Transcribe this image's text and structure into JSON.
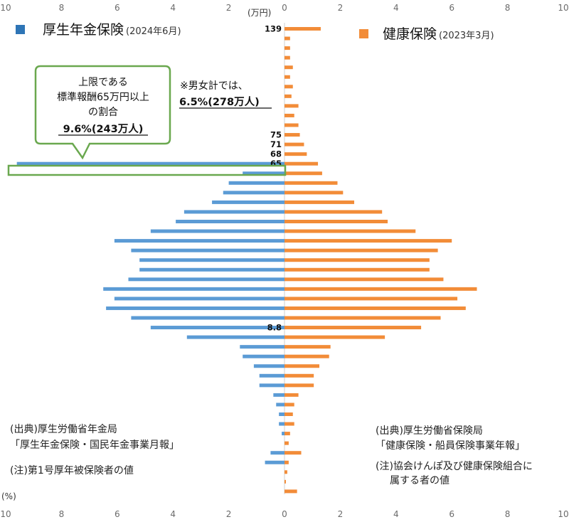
{
  "chart_data": {
    "type": "bar",
    "orientation": "horizontal-population-pyramid",
    "x_ticks": [
      "10",
      "8",
      "6",
      "4",
      "2",
      "0",
      "2",
      "4",
      "6",
      "8",
      "10"
    ],
    "x_unit_label": "(%)",
    "y_unit_label": "(万円)",
    "xlim": [
      -10,
      10
    ],
    "band_labels": [
      {
        "label": "139",
        "index": 0
      },
      {
        "label": "75",
        "index": 11
      },
      {
        "label": "71",
        "index": 12
      },
      {
        "label": "68",
        "index": 13
      },
      {
        "label": "65",
        "index": 14
      },
      {
        "label": "8.8",
        "index": 31
      }
    ],
    "series": [
      {
        "name": "厚生年金保険",
        "name_note": "(2024年6月)",
        "side": "left",
        "color": "#5b9bd5",
        "values": [
          0,
          0,
          0,
          0,
          0,
          0,
          0,
          0,
          0,
          0,
          0,
          0,
          0,
          0,
          9.6,
          1.5,
          2.0,
          2.2,
          2.6,
          3.6,
          3.9,
          4.8,
          6.1,
          5.5,
          5.2,
          5.2,
          5.6,
          6.5,
          6.1,
          6.4,
          5.5,
          4.8,
          3.5,
          1.6,
          1.5,
          1.1,
          0.9,
          0.9,
          0.4,
          0.3,
          0.2,
          0.2,
          0.1,
          0.0,
          0.5,
          0.7,
          0.0,
          0.0,
          0.0
        ]
      },
      {
        "name": "健康保険",
        "name_note": "(2023年3月)",
        "side": "right",
        "color": "#f28c38",
        "values": [
          1.3,
          0.2,
          0.2,
          0.2,
          0.3,
          0.2,
          0.3,
          0.25,
          0.5,
          0.35,
          0.5,
          0.55,
          0.7,
          0.8,
          1.2,
          1.35,
          1.9,
          2.1,
          2.5,
          3.5,
          3.7,
          4.7,
          6.0,
          5.5,
          5.2,
          5.2,
          5.7,
          6.9,
          6.2,
          6.5,
          5.6,
          4.9,
          3.6,
          1.65,
          1.6,
          1.25,
          1.05,
          1.05,
          0.5,
          0.35,
          0.3,
          0.35,
          0.2,
          0.15,
          0.6,
          0.15,
          0.1,
          0.05,
          0.45
        ]
      }
    ]
  },
  "legend": {
    "left": {
      "title": "厚生年金保険",
      "sub": "(2024年6月)"
    },
    "right": {
      "title": "健康保険",
      "sub": "(2023年3月)"
    }
  },
  "callout": {
    "line1": "上限である",
    "line2": "標準報酬65万円以上",
    "line3": "の割合",
    "emphasis": "9.6%(243万人)"
  },
  "gender_note": {
    "line1": "※男女計では、",
    "emphasis": "6.5%(278万人)"
  },
  "notes": {
    "left_source_1": "(出典)厚生労働省年金局",
    "left_source_2": "「厚生年金保険・国民年金事業月報」",
    "left_note": "(注)第1号厚年被保険者の値",
    "right_source_1": "(出典)厚生労働省保険局",
    "right_source_2": "「健康保険・船員保険事業年報」",
    "right_note_1": "(注)協会けんぽ及び健康保険組合に",
    "right_note_2": "属する者の値"
  }
}
